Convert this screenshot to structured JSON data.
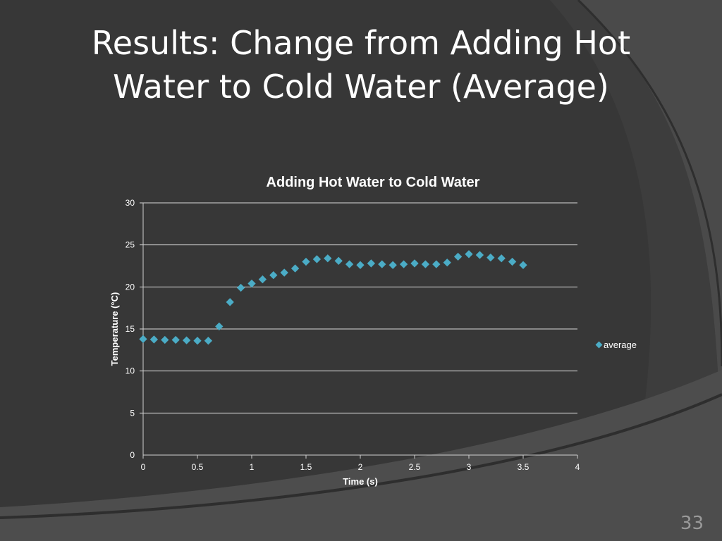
{
  "slide": {
    "title_line1": "Results: Change from Adding Hot",
    "title_line2": "Water to Cold Water (Average)",
    "slide_number": "33",
    "colors": {
      "background": "#3a3a3a",
      "arc": "#505050",
      "text": "#ffffff",
      "marker": "#4bacc6"
    }
  },
  "chart_data": {
    "type": "scatter",
    "title": "Adding Hot Water to Cold Water",
    "xlabel": "Time (s)",
    "ylabel": "Temperature (°C)",
    "xlim": [
      0,
      4
    ],
    "ylim": [
      0,
      30
    ],
    "xticks": [
      "0",
      "0.5",
      "1",
      "1.5",
      "2",
      "2.5",
      "3",
      "3.5",
      "4"
    ],
    "yticks": [
      "0",
      "5",
      "10",
      "15",
      "20",
      "25",
      "30"
    ],
    "grid": "horizontal",
    "legend": "right",
    "series": [
      {
        "name": "average",
        "marker": "diamond",
        "color": "#4bacc6",
        "x": [
          0,
          0.1,
          0.2,
          0.3,
          0.4,
          0.5,
          0.6,
          0.7,
          0.8,
          0.9,
          1.0,
          1.1,
          1.2,
          1.3,
          1.4,
          1.5,
          1.6,
          1.7,
          1.8,
          1.9,
          2.0,
          2.1,
          2.2,
          2.3,
          2.4,
          2.5,
          2.6,
          2.7,
          2.8,
          2.9,
          3.0,
          3.1,
          3.2,
          3.3,
          3.4,
          3.5
        ],
        "y": [
          13.8,
          13.75,
          13.7,
          13.7,
          13.65,
          13.6,
          13.6,
          15.3,
          18.2,
          19.9,
          20.4,
          20.9,
          21.4,
          21.7,
          22.2,
          23.0,
          23.3,
          23.4,
          23.1,
          22.7,
          22.6,
          22.8,
          22.7,
          22.6,
          22.7,
          22.8,
          22.7,
          22.7,
          22.9,
          23.6,
          23.9,
          23.8,
          23.5,
          23.4,
          23.0,
          22.6
        ]
      }
    ]
  }
}
